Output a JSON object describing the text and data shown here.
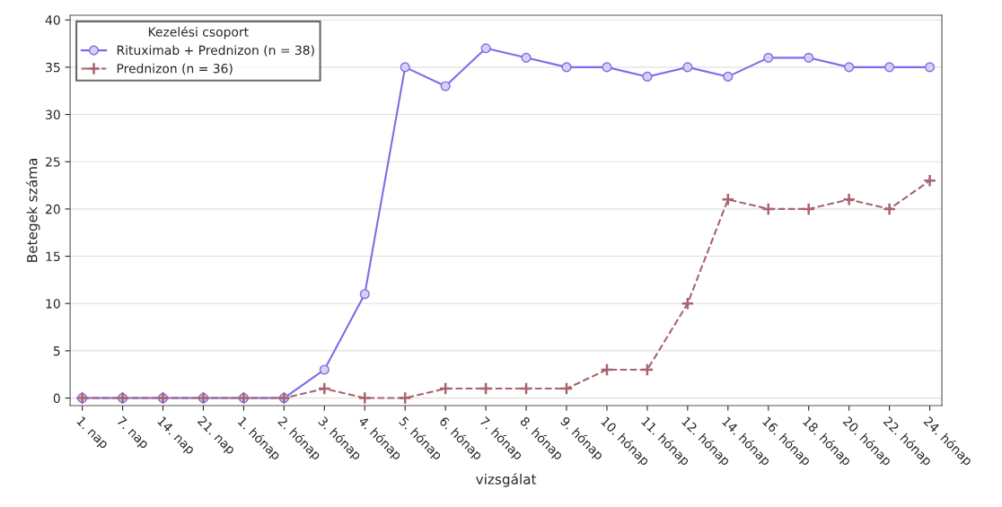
{
  "chart_data": {
    "type": "line",
    "xlabel": "vizsgálat",
    "ylabel": "Betegek száma",
    "legend_title": "Kezelési csoport",
    "legend": "top left",
    "grid": "y",
    "categories": [
      "1. nap",
      "7. nap",
      "14. nap",
      "21. nap",
      "1. hónap",
      "2. hónap",
      "3. hónap",
      "4. hónap",
      "5. hónap",
      "6. hónap",
      "7. hónap",
      "8. hónap",
      "9. hónap",
      "10. hónap",
      "11. hónap",
      "12. hónap",
      "14. hónap",
      "16. hónap",
      "18. hónap",
      "20. hónap",
      "22. hónap",
      "24. hónap"
    ],
    "ylim": [
      -0.8,
      40.5
    ],
    "yticks": [
      0,
      5,
      10,
      15,
      20,
      25,
      30,
      35,
      40
    ],
    "series": [
      {
        "name": "Rituximab + Prednizon (n = 38)",
        "color": "#7b6ee6",
        "marker": "circle",
        "line_style": "solid",
        "values": [
          0,
          0,
          0,
          0,
          0,
          0,
          3,
          11,
          35,
          33,
          37,
          36,
          35,
          35,
          34,
          35,
          34,
          36,
          36,
          35,
          35,
          35
        ]
      },
      {
        "name": "Prednizon (n = 36)",
        "color": "#a8646e",
        "marker": "cross",
        "line_style": "dashed",
        "values": [
          0,
          0,
          0,
          0,
          0,
          0,
          1,
          0,
          0,
          1,
          1,
          1,
          1,
          3,
          3,
          10,
          21,
          20,
          20,
          21,
          20,
          23
        ]
      }
    ]
  }
}
